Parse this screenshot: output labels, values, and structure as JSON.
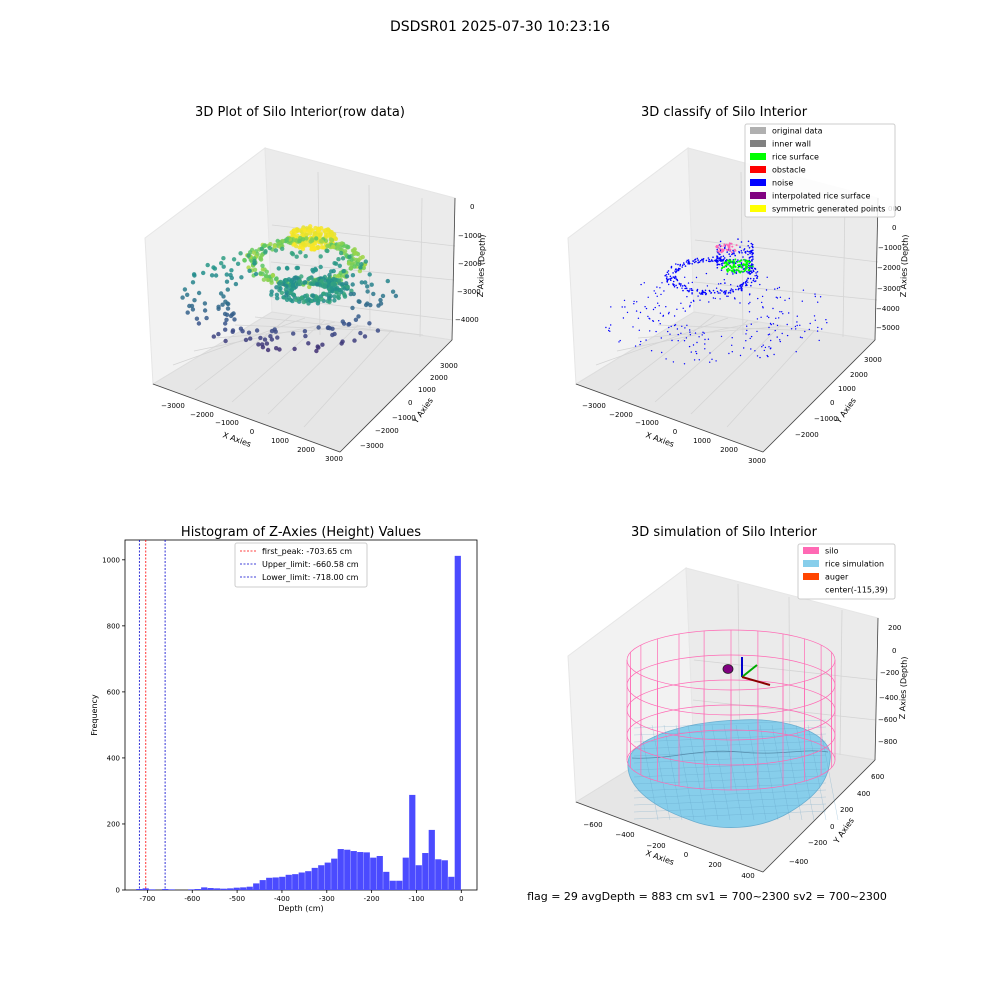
{
  "suptitle": "DSDSR01 2025-07-30 10:23:16",
  "footer": "flag = 29  avgDepth = 883 cm  sv1 = 700~2300  sv2 = 700~2300",
  "colors": {
    "hist_bar": "#4b4bff",
    "first_peak": "#ff0000",
    "limit_line": "#0000cc",
    "silo": "#ff69b4",
    "rice": "#87ceeb"
  },
  "chart_data": [
    {
      "type": "scatter",
      "title": "3D Plot of Silo Interior(row data)",
      "xlabel": "X Axies",
      "ylabel": "Y Axies",
      "zlabel": "Z Axies (Depth)",
      "x_ticks": [
        "−3000",
        "−2000",
        "−1000",
        "0",
        "1000",
        "2000",
        "3000"
      ],
      "y_ticks": [
        "−3000",
        "−2000",
        "−1000",
        "0",
        "1000",
        "2000",
        "3000"
      ],
      "z_ticks": [
        "−4000",
        "−3000",
        "−2000",
        "−1000",
        "0"
      ],
      "colormap": "viridis"
    },
    {
      "type": "scatter",
      "title": "3D classify of Silo Interior",
      "xlabel": "X Axies",
      "ylabel": "Y Axies",
      "zlabel": "Z Axies (Depth)",
      "x_ticks": [
        "−3000",
        "−2000",
        "−1000",
        "0",
        "1000",
        "2000",
        "3000"
      ],
      "y_ticks": [
        "−2000",
        "−1000",
        "0",
        "1000",
        "2000",
        "3000"
      ],
      "z_ticks": [
        "−5000",
        "−4000",
        "−3000",
        "−2000",
        "−1000",
        "0",
        "1000"
      ],
      "z_tick_overlapped": "000",
      "legend": [
        {
          "label": "original data",
          "color": "#b0b0b0"
        },
        {
          "label": "inner wall",
          "color": "#808080"
        },
        {
          "label": "rice surface",
          "color": "#00ff00"
        },
        {
          "label": "obstacle",
          "color": "#ff0000"
        },
        {
          "label": "noise",
          "color": "#0000ff"
        },
        {
          "label": "interpolated rice surface",
          "color": "#800080"
        },
        {
          "label": "symmetric generated points",
          "color": "#ffff00"
        }
      ]
    },
    {
      "type": "bar",
      "title": "Histogram of Z-Axies (Height) Values",
      "xlabel": "Depth (cm)",
      "ylabel": "Frequency",
      "xlim": [
        -750,
        35
      ],
      "ylim": [
        0,
        1060
      ],
      "x_ticks": [
        -700,
        -600,
        -500,
        -400,
        -300,
        -200,
        -100,
        0
      ],
      "y_ticks": [
        0,
        200,
        400,
        600,
        800,
        1000
      ],
      "bin_width": 14.5,
      "bins": [
        {
          "x": -718,
          "v": 3
        },
        {
          "x": -703.5,
          "v": 5
        },
        {
          "x": -689,
          "v": 2
        },
        {
          "x": -674.5,
          "v": 0
        },
        {
          "x": -660,
          "v": 3
        },
        {
          "x": -645.5,
          "v": 2
        },
        {
          "x": -631,
          "v": 0
        },
        {
          "x": -616.5,
          "v": 0
        },
        {
          "x": -602,
          "v": 2
        },
        {
          "x": -587.5,
          "v": 3
        },
        {
          "x": -573,
          "v": 8
        },
        {
          "x": -558.5,
          "v": 6
        },
        {
          "x": -544,
          "v": 5
        },
        {
          "x": -529.5,
          "v": 4
        },
        {
          "x": -515,
          "v": 5
        },
        {
          "x": -500.5,
          "v": 7
        },
        {
          "x": -486,
          "v": 8
        },
        {
          "x": -471.5,
          "v": 10
        },
        {
          "x": -457,
          "v": 20
        },
        {
          "x": -442.5,
          "v": 30
        },
        {
          "x": -428,
          "v": 37
        },
        {
          "x": -413.5,
          "v": 38
        },
        {
          "x": -399,
          "v": 40
        },
        {
          "x": -384.5,
          "v": 46
        },
        {
          "x": -370,
          "v": 48
        },
        {
          "x": -355.5,
          "v": 53
        },
        {
          "x": -341,
          "v": 57
        },
        {
          "x": -326.5,
          "v": 67
        },
        {
          "x": -312,
          "v": 75
        },
        {
          "x": -297.5,
          "v": 83
        },
        {
          "x": -283,
          "v": 95
        },
        {
          "x": -268.5,
          "v": 124
        },
        {
          "x": -254,
          "v": 122
        },
        {
          "x": -239.5,
          "v": 118
        },
        {
          "x": -225,
          "v": 115
        },
        {
          "x": -210.5,
          "v": 114
        },
        {
          "x": -196,
          "v": 98
        },
        {
          "x": -181.5,
          "v": 103
        },
        {
          "x": -167,
          "v": 55
        },
        {
          "x": -152.5,
          "v": 28
        },
        {
          "x": -138,
          "v": 28
        },
        {
          "x": -123.5,
          "v": 98
        },
        {
          "x": -109,
          "v": 288
        },
        {
          "x": -94.5,
          "v": 75
        },
        {
          "x": -80,
          "v": 112
        },
        {
          "x": -65.5,
          "v": 182
        },
        {
          "x": -51,
          "v": 93
        },
        {
          "x": -36.5,
          "v": 90
        },
        {
          "x": -22,
          "v": 40
        },
        {
          "x": -7.5,
          "v": 1012
        }
      ],
      "vlines": [
        {
          "label": "first_peak: -703.65 cm",
          "x": -703.65,
          "color": "#ff0000"
        },
        {
          "label": "Upper_limit: -660.58 cm",
          "x": -660.58,
          "color": "#0000cc"
        },
        {
          "label": "Lower_limit: -718.00 cm",
          "x": -718.0,
          "color": "#0000cc"
        }
      ]
    },
    {
      "type": "area",
      "title": "3D simulation of Silo Interior",
      "xlabel": "X Axies",
      "ylabel": "Y Axies",
      "zlabel": "Z Axies (Depth)",
      "x_ticks": [
        "−600",
        "−400",
        "−200",
        "0",
        "200",
        "400"
      ],
      "y_ticks": [
        "−400",
        "−200",
        "0",
        "200",
        "400",
        "600"
      ],
      "z_ticks": [
        "−800",
        "−600",
        "−400",
        "−200",
        "0",
        "200"
      ],
      "legend": [
        {
          "label": "silo",
          "color": "#ff69b4"
        },
        {
          "label": "rice simulation",
          "color": "#87ceeb"
        },
        {
          "label": "auger",
          "color": "#ff4500"
        },
        {
          "label": "center(-115,39)",
          "color": ""
        }
      ]
    }
  ]
}
